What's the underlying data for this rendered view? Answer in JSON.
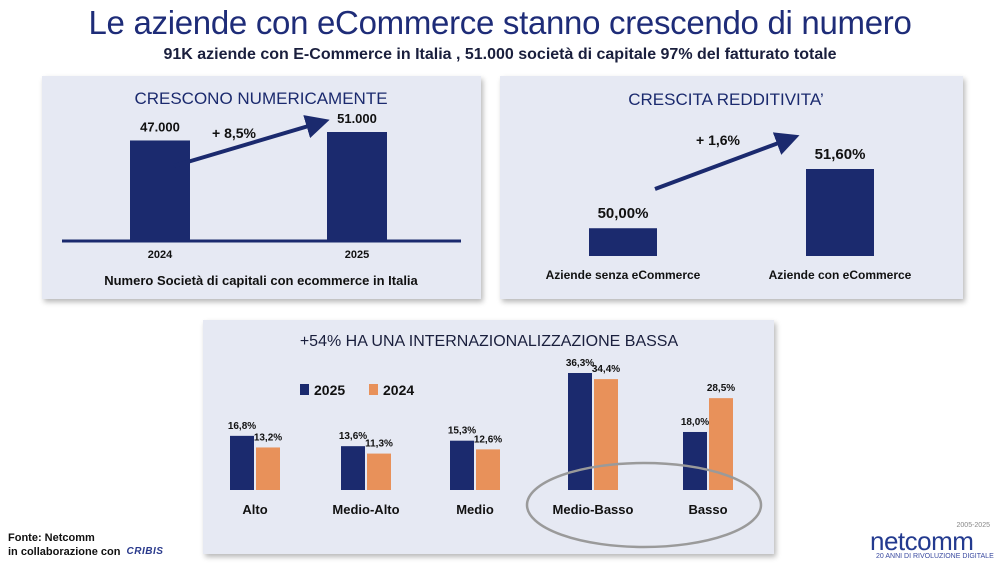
{
  "header": {
    "title": "Le aziende con eCommerce stanno crescendo di numero",
    "subtitle": "91K aziende con E-Commerce in Italia , 51.000 società di capitale 97% del fatturato totale"
  },
  "colors": {
    "navy": "#1b2a6e",
    "orange": "#e8915a",
    "panel_bg": "#e6e9f3"
  },
  "chart_data": [
    {
      "type": "bar",
      "title": "CRESCONO NUMERICAMENTE",
      "xlabel": "Numero Società di capitali con ecommerce in Italia",
      "categories": [
        "2024",
        "2025"
      ],
      "values": [
        47000,
        51000
      ],
      "data_labels": [
        "47.000",
        "51.000"
      ],
      "annotation": "+ 8,5%",
      "arrow": "up-right"
    },
    {
      "type": "bar",
      "title": "CRESCITA REDDITIVITA’",
      "categories": [
        "Aziende senza  eCommerce",
        "Aziende con eCommerce"
      ],
      "values": [
        50.0,
        51.6
      ],
      "data_labels": [
        "50,00%",
        "51,60%"
      ],
      "annotation": "+ 1,6%",
      "arrow": "up-right"
    },
    {
      "type": "bar",
      "title": "+54% HA UNA INTERNAZIONALIZZAZIONE BASSA",
      "categories": [
        "Alto",
        "Medio-Alto",
        "Medio",
        "Medio-Basso",
        "Basso"
      ],
      "series": [
        {
          "name": "2025",
          "values": [
            16.8,
            13.6,
            15.3,
            36.3,
            18.0
          ],
          "labels": [
            "16,8%",
            "13,6%",
            "15,3%",
            "36,3%",
            "18,0%"
          ]
        },
        {
          "name": "2024",
          "values": [
            13.2,
            11.3,
            12.6,
            34.4,
            28.5
          ],
          "labels": [
            "13,2%",
            "11,3%",
            "12,6%",
            "34,4%",
            "28,5%"
          ]
        }
      ],
      "legend": "top-left",
      "highlight": "Medio-Basso"
    }
  ],
  "footer": {
    "source_line1": "Fonte: Netcomm",
    "source_line2": "in collaborazione con",
    "partner_logo_text": "CRIBIS",
    "brand_name": "netcomm",
    "brand_years": "2005-2025",
    "brand_tagline": "20 ANNI DI RIVOLUZIONE DIGITALE"
  }
}
